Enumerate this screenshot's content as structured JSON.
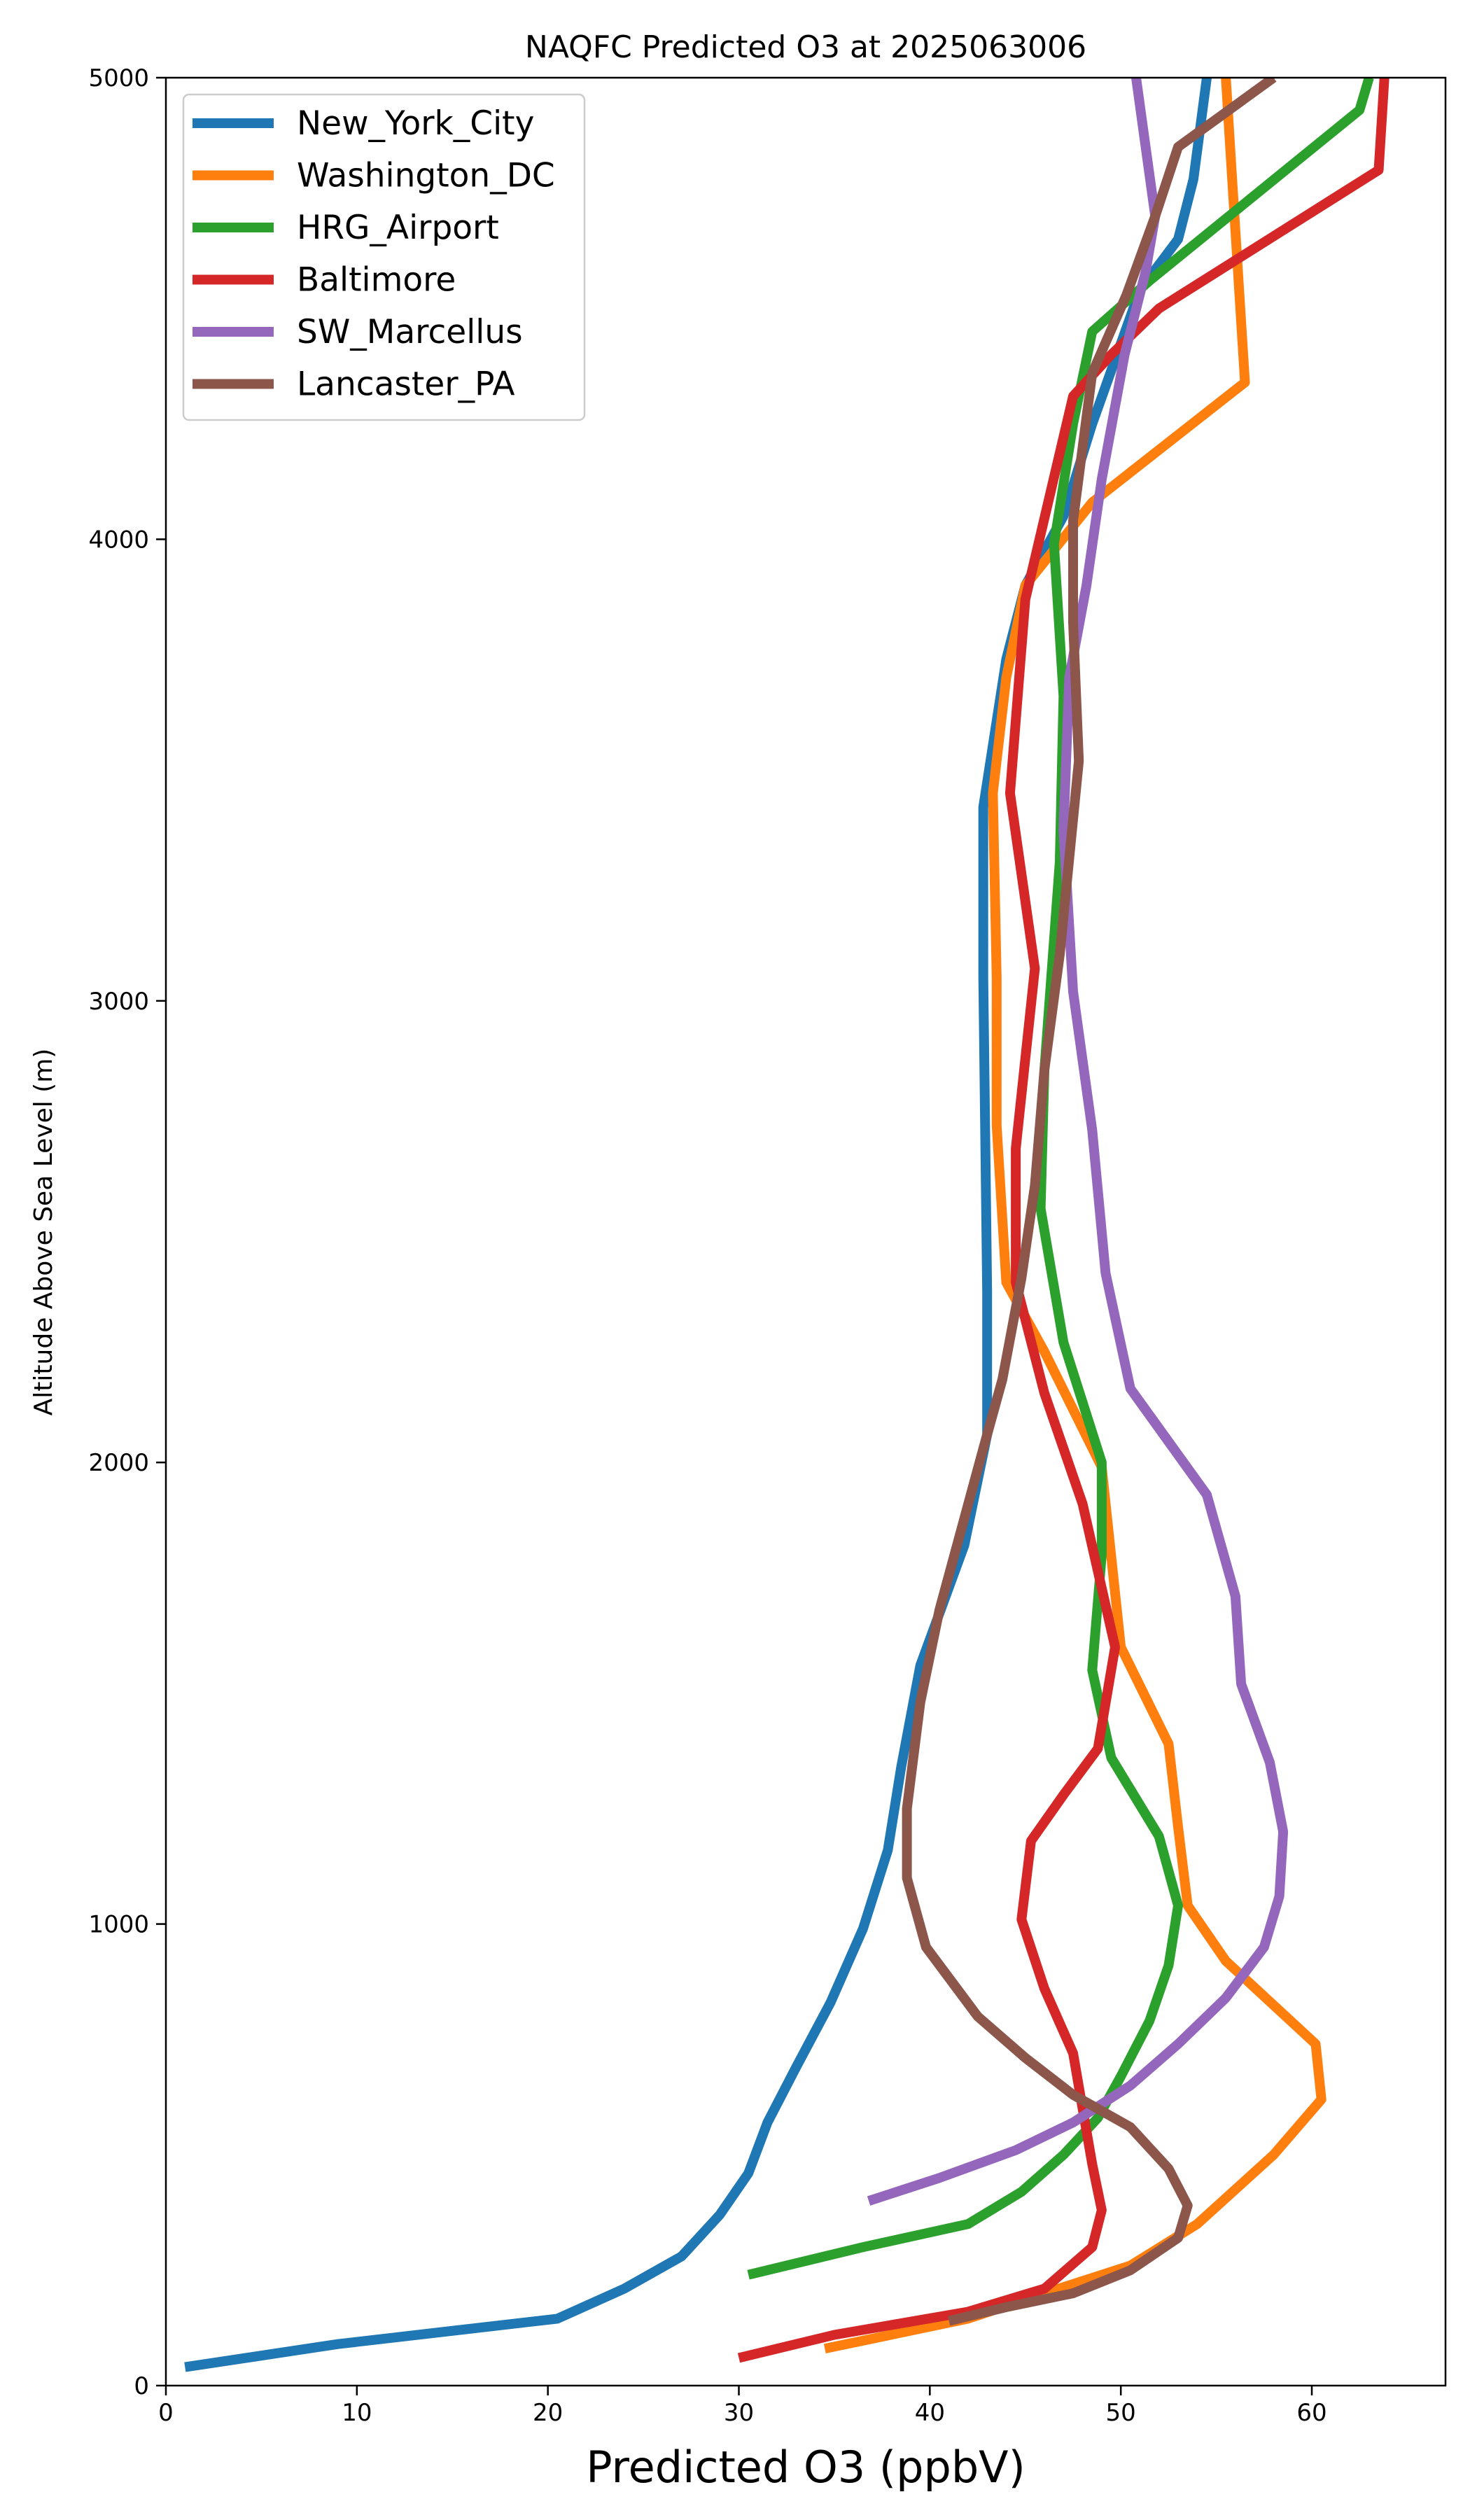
{
  "chart_data": {
    "type": "line",
    "title": "NAQFC Predicted O3 at 2025063006",
    "xlabel": "Predicted O3 (ppbV)",
    "ylabel": "Altitude Above Sea Level (m)",
    "xlim": [
      0,
      67
    ],
    "ylim": [
      0,
      5000
    ],
    "x_ticks": [
      0,
      10,
      20,
      30,
      40,
      50,
      60
    ],
    "y_ticks": [
      0,
      1000,
      2000,
      3000,
      4000,
      5000
    ],
    "grid": false,
    "legend_position": "top-left",
    "series": [
      {
        "name": "New_York_City",
        "color": "#1f77b4",
        "points": [
          [
            1,
            40
          ],
          [
            9,
            90
          ],
          [
            20.5,
            145
          ],
          [
            24,
            210
          ],
          [
            27,
            280
          ],
          [
            29,
            370
          ],
          [
            30.5,
            460
          ],
          [
            31.5,
            570
          ],
          [
            33,
            690
          ],
          [
            34.8,
            830
          ],
          [
            36.5,
            990
          ],
          [
            37.8,
            1160
          ],
          [
            38.5,
            1340
          ],
          [
            39.5,
            1560
          ],
          [
            41.8,
            1820
          ],
          [
            43,
            2060
          ],
          [
            43,
            2370
          ],
          [
            42.8,
            3050
          ],
          [
            42.8,
            3420
          ],
          [
            44,
            3740
          ],
          [
            45,
            3900
          ],
          [
            47,
            4050
          ],
          [
            48.5,
            4250
          ],
          [
            51,
            4540
          ],
          [
            53,
            4650
          ],
          [
            53.8,
            4780
          ],
          [
            54.5,
            5000
          ]
        ]
      },
      {
        "name": "Washington_DC",
        "color": "#ff7f0e",
        "points": [
          [
            34.5,
            80
          ],
          [
            42,
            145
          ],
          [
            46,
            200
          ],
          [
            50.5,
            260
          ],
          [
            54,
            350
          ],
          [
            58,
            500
          ],
          [
            60.5,
            620
          ],
          [
            60.2,
            740
          ],
          [
            55.5,
            920
          ],
          [
            53.5,
            1040
          ],
          [
            53,
            1210
          ],
          [
            52.5,
            1390
          ],
          [
            50,
            1600
          ],
          [
            49,
            1990
          ],
          [
            46,
            2240
          ],
          [
            44,
            2390
          ],
          [
            43.5,
            2730
          ],
          [
            43.5,
            3050
          ],
          [
            43.3,
            3450
          ],
          [
            44,
            3700
          ],
          [
            45,
            3900
          ],
          [
            48.5,
            4080
          ],
          [
            56.5,
            4340
          ],
          [
            55.8,
            4800
          ],
          [
            55.5,
            5000
          ]
        ]
      },
      {
        "name": "HRG_Airport",
        "color": "#2ca02c",
        "points": [
          [
            30.5,
            240
          ],
          [
            36.5,
            300
          ],
          [
            42,
            350
          ],
          [
            44.8,
            420
          ],
          [
            47,
            500
          ],
          [
            48.8,
            580
          ],
          [
            50,
            670
          ],
          [
            51.5,
            790
          ],
          [
            52.5,
            910
          ],
          [
            53,
            1040
          ],
          [
            52,
            1190
          ],
          [
            49.5,
            1360
          ],
          [
            48.5,
            1550
          ],
          [
            49,
            1800
          ],
          [
            49,
            2000
          ],
          [
            47,
            2260
          ],
          [
            45.8,
            2550
          ],
          [
            46,
            2850
          ],
          [
            46.8,
            3300
          ],
          [
            47,
            3660
          ],
          [
            46.5,
            3990
          ],
          [
            47.5,
            4250
          ],
          [
            48.5,
            4450
          ],
          [
            51.5,
            4560
          ],
          [
            62.5,
            4930
          ],
          [
            63,
            5000
          ]
        ]
      },
      {
        "name": "Baltimore",
        "color": "#d62728",
        "points": [
          [
            30,
            60
          ],
          [
            35,
            110
          ],
          [
            42,
            160
          ],
          [
            46,
            210
          ],
          [
            48.5,
            300
          ],
          [
            49,
            380
          ],
          [
            48.5,
            480
          ],
          [
            48,
            600
          ],
          [
            47.5,
            720
          ],
          [
            46,
            860
          ],
          [
            44.8,
            1010
          ],
          [
            45.3,
            1180
          ],
          [
            47,
            1280
          ],
          [
            48.8,
            1380
          ],
          [
            49.7,
            1600
          ],
          [
            48,
            1910
          ],
          [
            46,
            2150
          ],
          [
            44.5,
            2390
          ],
          [
            44.5,
            2680
          ],
          [
            45.5,
            3070
          ],
          [
            44.2,
            3450
          ],
          [
            45,
            3870
          ],
          [
            47.5,
            4310
          ],
          [
            49.5,
            4400
          ],
          [
            52,
            4500
          ],
          [
            63.5,
            4800
          ],
          [
            63.8,
            5000
          ]
        ]
      },
      {
        "name": "SW_Marcellus",
        "color": "#9467bd",
        "points": [
          [
            36.8,
            400
          ],
          [
            40.5,
            450
          ],
          [
            44.5,
            510
          ],
          [
            47.5,
            570
          ],
          [
            50.5,
            650
          ],
          [
            53,
            740
          ],
          [
            55.5,
            840
          ],
          [
            57.5,
            950
          ],
          [
            58.3,
            1060
          ],
          [
            58.5,
            1200
          ],
          [
            57.8,
            1350
          ],
          [
            56.3,
            1520
          ],
          [
            56,
            1710
          ],
          [
            54.5,
            1930
          ],
          [
            50.5,
            2160
          ],
          [
            49.2,
            2410
          ],
          [
            48.5,
            2720
          ],
          [
            47.5,
            3020
          ],
          [
            47,
            3370
          ],
          [
            47.3,
            3700
          ],
          [
            48.2,
            3900
          ],
          [
            49,
            4130
          ],
          [
            50.2,
            4400
          ],
          [
            51.3,
            4580
          ],
          [
            51.8,
            4700
          ],
          [
            51.3,
            4850
          ],
          [
            50.8,
            5000
          ]
        ]
      },
      {
        "name": "Lancaster_PA",
        "color": "#8c564b",
        "points": [
          [
            41,
            140
          ],
          [
            44,
            170
          ],
          [
            47.5,
            200
          ],
          [
            50.5,
            250
          ],
          [
            53,
            320
          ],
          [
            53.5,
            390
          ],
          [
            52.5,
            470
          ],
          [
            50.5,
            560
          ],
          [
            47.5,
            630
          ],
          [
            45,
            710
          ],
          [
            42.5,
            800
          ],
          [
            39.8,
            950
          ],
          [
            38.8,
            1100
          ],
          [
            38.8,
            1250
          ],
          [
            39.5,
            1480
          ],
          [
            40.5,
            1680
          ],
          [
            42.8,
            2030
          ],
          [
            43.8,
            2180
          ],
          [
            44.8,
            2400
          ],
          [
            45.5,
            2600
          ],
          [
            46,
            2850
          ],
          [
            46.8,
            3100
          ],
          [
            47.8,
            3520
          ],
          [
            47.5,
            3820
          ],
          [
            47.5,
            4040
          ],
          [
            48.5,
            4360
          ],
          [
            50.3,
            4530
          ],
          [
            51.8,
            4700
          ],
          [
            53,
            4850
          ],
          [
            58,
            5000
          ]
        ]
      }
    ]
  }
}
